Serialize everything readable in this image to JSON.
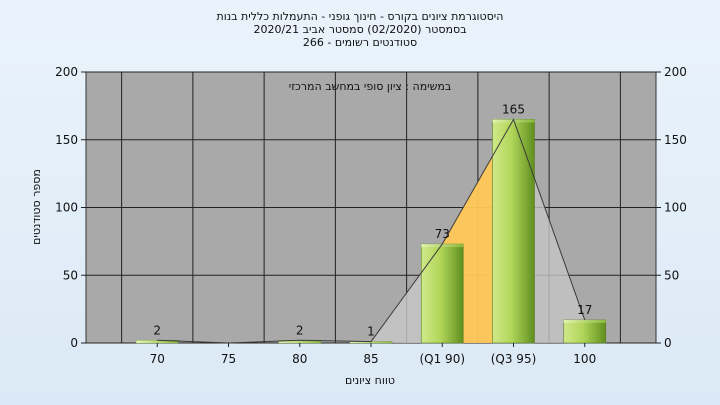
{
  "chart_data": {
    "type": "bar",
    "title_lines": [
      "היסטוגרמת ציונים בקורס - חינוך גופני - התעמלות כללית בנות",
      "בסמסטר  (02/2020)  סמסטר אביב 2020/21",
      "סטודנטים רשומים - 266"
    ],
    "subtitle": "במשימה : ציון סופי במחשב המרכזי",
    "xlabel": "טווח ציונים",
    "ylabel": "מספר סטודנטים",
    "categories": [
      "70",
      "75",
      "80",
      "85",
      "(Q1 90)",
      "(Q3 95)",
      "100"
    ],
    "values": [
      2,
      0,
      2,
      1,
      73,
      165,
      17
    ],
    "data_labels": [
      "2",
      "",
      "2",
      "1",
      "73",
      "165",
      "17"
    ],
    "ylim": [
      0,
      200
    ],
    "yticks": [
      "0",
      "50",
      "100",
      "150",
      "200"
    ],
    "grid": true,
    "right_axis": true,
    "quartile_band": {
      "from_category": "(Q1 90)",
      "to_category": "(Q3 95)",
      "color": "#ffc857"
    },
    "colors": {
      "plot_bg": "#a9a9a9",
      "bar_light": "#d4ec8a",
      "bar_dark": "#5f8f1f",
      "grid": "#222222"
    }
  }
}
